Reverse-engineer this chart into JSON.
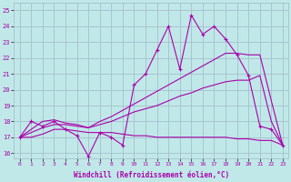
{
  "xlabel": "Windchill (Refroidissement éolien,°C)",
  "background_color": "#c0e8e8",
  "grid_color": "#a0b8c8",
  "line_color": "#aa00aa",
  "xlim": [
    -0.5,
    23.5
  ],
  "ylim": [
    15.7,
    25.5
  ],
  "xticks": [
    0,
    1,
    2,
    3,
    4,
    5,
    6,
    7,
    8,
    9,
    10,
    11,
    12,
    13,
    14,
    15,
    16,
    17,
    18,
    19,
    20,
    21,
    22,
    23
  ],
  "yticks": [
    16,
    17,
    18,
    19,
    20,
    21,
    22,
    23,
    24,
    25
  ],
  "series_zigzag": [
    17.0,
    18.0,
    17.7,
    18.0,
    17.5,
    17.1,
    15.8,
    17.3,
    17.0,
    16.5,
    20.3,
    21.0,
    22.5,
    24.0,
    21.3,
    24.7,
    23.5,
    24.0,
    23.2,
    22.2,
    20.9,
    17.7,
    17.5,
    16.5
  ],
  "series_line1": [
    17.0,
    17.5,
    18.0,
    18.1,
    17.9,
    17.8,
    17.6,
    18.0,
    18.3,
    18.7,
    19.1,
    19.5,
    19.9,
    20.3,
    20.7,
    21.1,
    21.5,
    21.9,
    22.3,
    22.3,
    22.2,
    22.2,
    19.3,
    16.5
  ],
  "series_line2": [
    17.0,
    17.3,
    17.6,
    17.8,
    17.8,
    17.7,
    17.6,
    17.8,
    18.0,
    18.3,
    18.6,
    18.8,
    19.0,
    19.3,
    19.6,
    19.8,
    20.1,
    20.3,
    20.5,
    20.6,
    20.6,
    20.9,
    18.0,
    16.5
  ],
  "series_line3": [
    17.0,
    17.0,
    17.2,
    17.5,
    17.5,
    17.4,
    17.3,
    17.3,
    17.3,
    17.2,
    17.1,
    17.1,
    17.0,
    17.0,
    17.0,
    17.0,
    17.0,
    17.0,
    17.0,
    16.9,
    16.9,
    16.8,
    16.8,
    16.5
  ]
}
